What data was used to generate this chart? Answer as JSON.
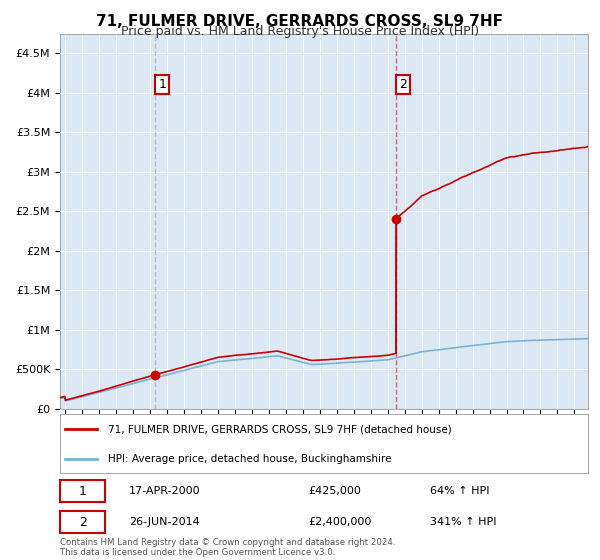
{
  "title": "71, FULMER DRIVE, GERRARDS CROSS, SL9 7HF",
  "subtitle": "Price paid vs. HM Land Registry's House Price Index (HPI)",
  "title_fontsize": 11,
  "subtitle_fontsize": 9,
  "bg_color": "#dce9f5",
  "sale1_year": 2000.29,
  "sale1_price": 425000,
  "sale1_date_str": "17-APR-2000",
  "sale1_hpi_pct": "64%",
  "sale2_year": 2014.49,
  "sale2_price": 2400000,
  "sale2_date_str": "26-JUN-2014",
  "sale2_hpi_pct": "341%",
  "ylim": [
    0,
    4750000
  ],
  "xlim_start": 1994.7,
  "xlim_end": 2025.8,
  "hpi_color": "#7ab3d4",
  "price_color": "#cc0000",
  "vline1_color": "#bbbbbb",
  "vline2_color": "#dd4444",
  "footer_text": "Contains HM Land Registry data © Crown copyright and database right 2024.\nThis data is licensed under the Open Government Licence v3.0.",
  "legend_line1": "71, FULMER DRIVE, GERRARDS CROSS, SL9 7HF (detached house)",
  "legend_line2": "HPI: Average price, detached house, Buckinghamshire",
  "yticks": [
    0,
    500000,
    1000000,
    1500000,
    2000000,
    2500000,
    3000000,
    3500000,
    4000000,
    4500000
  ],
  "ytick_labels": [
    "£0",
    "£500K",
    "£1M",
    "£1.5M",
    "£2M",
    "£2.5M",
    "£3M",
    "£3.5M",
    "£4M",
    "£4.5M"
  ]
}
